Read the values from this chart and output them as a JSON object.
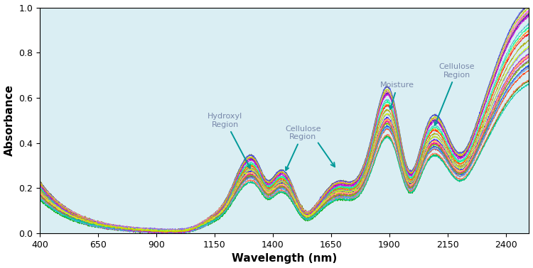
{
  "xlabel": "Wavelength (nm)",
  "ylabel": "Absorbance",
  "xlim": [
    400,
    2500
  ],
  "ylim": [
    0.0,
    1.0
  ],
  "xticks": [
    400,
    650,
    900,
    1150,
    1400,
    1650,
    1900,
    2150,
    2400
  ],
  "yticks": [
    0.0,
    0.2,
    0.4,
    0.6,
    0.8,
    1.0
  ],
  "background_color": "#daeef3",
  "annotation_color": "#009999",
  "annotation_text_color": "#7888aa",
  "num_spectra": 30,
  "seed": 42
}
